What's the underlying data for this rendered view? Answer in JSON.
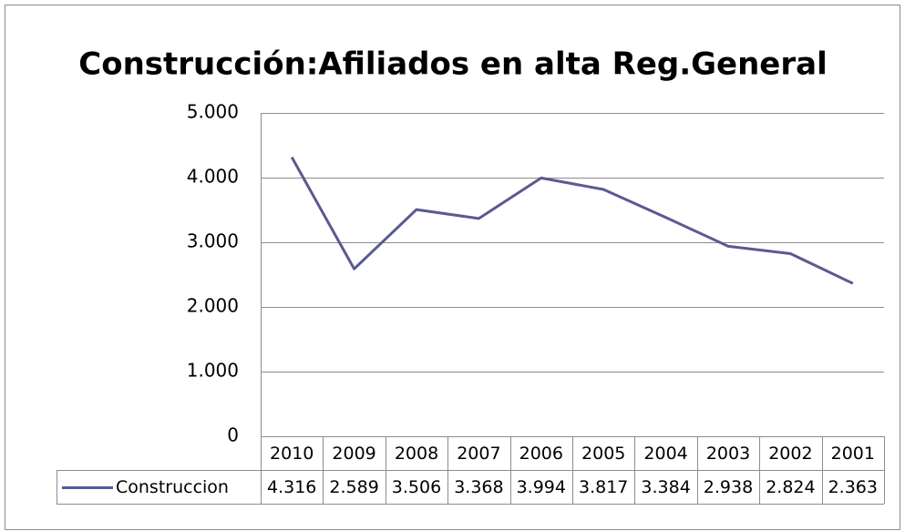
{
  "chart_data": {
    "type": "line",
    "title": "Construcción:Afiliados en alta Reg.General",
    "categories": [
      "2010",
      "2009",
      "2008",
      "2007",
      "2006",
      "2005",
      "2004",
      "2003",
      "2002",
      "2001"
    ],
    "series": [
      {
        "name": "Construccion",
        "color": "#5a5a92",
        "values": [
          4316,
          2589,
          3506,
          3368,
          3994,
          3817,
          3384,
          2938,
          2824,
          2363
        ],
        "value_labels": [
          "4.316",
          "2.589",
          "3.506",
          "3.368",
          "3.994",
          "3.817",
          "3.384",
          "2.938",
          "2.824",
          "2.363"
        ]
      }
    ],
    "ylim": [
      0,
      5000
    ],
    "yticks": [
      0,
      {
        "value": 1000,
        "label": "1.000"
      },
      {
        "value": 2000,
        "label": "2.000"
      },
      {
        "value": 3000,
        "label": "3.000"
      },
      {
        "value": 4000,
        "label": "4.000"
      },
      {
        "value": 5000,
        "label": "5.000"
      }
    ],
    "grid": true,
    "legend": "data-table"
  }
}
